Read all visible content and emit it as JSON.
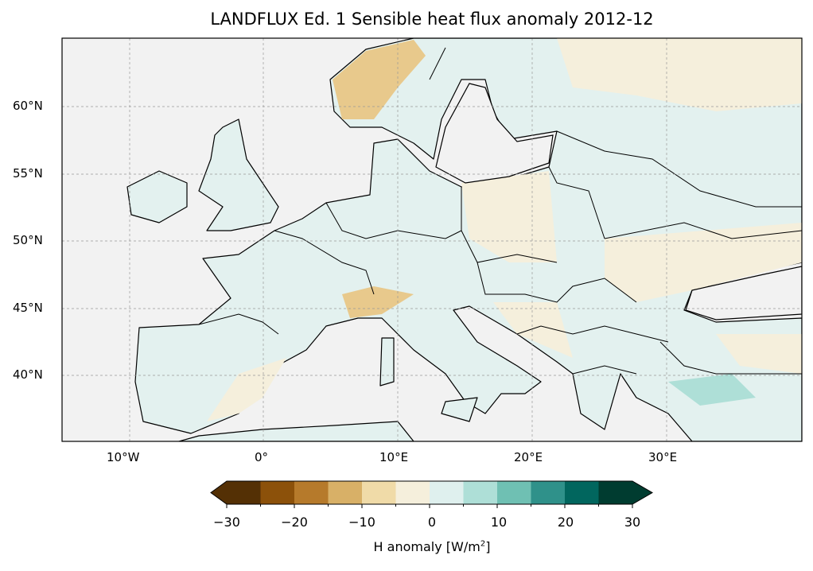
{
  "title": "LANDFLUX Ed. 1 Sensible heat flux anomaly 2012-12",
  "map": {
    "projection": "PlateCarree",
    "extent": {
      "lon": [
        -15,
        40
      ],
      "lat": [
        35,
        65
      ]
    },
    "ocean_color": "#f2f2f2",
    "gridlines": true,
    "lon_labels": [
      "10°W",
      "0°",
      "10°E",
      "20°E",
      "30°E"
    ],
    "lat_labels": [
      "60°N",
      "55°N",
      "50°N",
      "45°N",
      "40°N"
    ]
  },
  "colorbar": {
    "label": "H anomaly [W/m",
    "label_sup": "2",
    "label_end": "]",
    "ticks": [
      "−30",
      "−20",
      "−10",
      "0",
      "10",
      "20",
      "30"
    ],
    "levels": [
      -30,
      -25,
      -20,
      -15,
      -10,
      -5,
      0,
      5,
      10,
      15,
      20,
      25,
      30
    ],
    "colors": [
      "#543005",
      "#8c510a",
      "#b67a2b",
      "#d8b067",
      "#f0dba8",
      "#f5efdc",
      "#dff0ee",
      "#aedfd7",
      "#6fc0b3",
      "#2f918a",
      "#01665e",
      "#003c30"
    ],
    "extend": "both"
  }
}
